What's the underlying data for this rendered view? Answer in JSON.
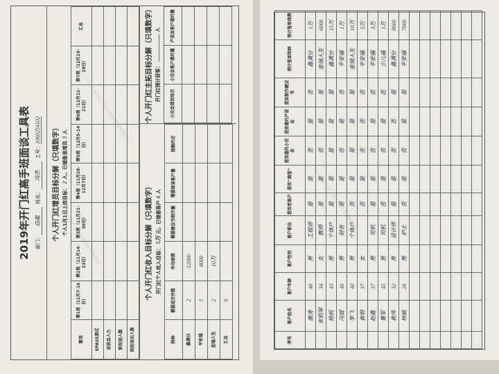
{
  "form_left": {
    "title": "2019年开门红高手班面谈工具表",
    "dept_label": "部门：",
    "dept_value": "白嵐",
    "name_label": "姓名：",
    "name_value": "冯杰",
    "id_label": "工号：",
    "id_value": "1060254102",
    "recruit": {
      "heading": "个人开门红增员目标分解（只填数字）",
      "goal_prefix": "个人1月1日上岗目标：",
      "goal_value": "2",
      "goal_mid": "人，已储备准增员",
      "reserve_value": "3",
      "goal_suffix": "人",
      "columns": [
        "事项",
        "第1周（11月7-16日）",
        "第2周（11月14-23日）",
        "第3周（11月21-30日）",
        "第4周（11月28-12月7日）",
        "第5周（12月5-14日）",
        "第6周（12月12-21日）",
        "第7周（12月19-28日）",
        "汇总"
      ],
      "rows": [
        "EPASS测试",
        "创说会人力",
        "职前班人数",
        "岗前培训人数"
      ]
    },
    "income": {
      "heading": "个人开门红收入目标分解（只填数字）",
      "goal_prefix": "开门红个人收入目标：",
      "goal_value": "5万",
      "goal_mid": "元，已储备客户",
      "reserve_value": "6",
      "goal_suffix": "人",
      "columns": [
        "险种",
        "需要成交件数",
        "件均保费",
        "需要建议书制作量",
        "需要面谈客户量",
        "接触约访"
      ],
      "rows": [
        {
          "label": "鑫满分",
          "count": "2",
          "premium": "12000"
        },
        {
          "label": "平安福",
          "count": "5",
          "premium": "8000"
        },
        {
          "label": "金瑞人生",
          "count": "2",
          "premium": "10万"
        },
        {
          "label": "汇总",
          "count": "9",
          "premium": ""
        }
      ]
    },
    "activity": {
      "heading": "个人开门红主拓目标分解（只填数字）",
      "goal_prefix": "开门红预计获客：",
      "goal_suffix": "人",
      "columns": [
        "小交会规划场次",
        "小交会客户邀约量",
        "产说会客户邀约量"
      ]
    }
  },
  "form_right": {
    "columns": [
      "序号",
      "客户姓名",
      "客户年龄",
      "客户性别",
      "客户职业",
      "是否老客户",
      "是否“面签”",
      "是否邀约小交会",
      "是否邀约产说会",
      "是否制作建议书",
      "预计签单险种",
      "预计签单保费"
    ],
    "rows": [
      [
        "",
        "康涛",
        "40",
        "男",
        "工程师",
        "是",
        "是",
        "否",
        "是",
        "否",
        "鑫满分",
        "1万"
      ],
      [
        "",
        "宋莉琴",
        "34",
        "女",
        "教师",
        "是",
        "是",
        "否",
        "是",
        "是",
        "金瑞人生",
        "6000"
      ],
      [
        "",
        "杨帆",
        "43",
        "男",
        "个体户",
        "是",
        "是",
        "是",
        "是",
        "是",
        "鑫满分",
        "15万"
      ],
      [
        "",
        "冯斌",
        "40",
        "男",
        "财务",
        "是",
        "是",
        "否",
        "是",
        "否",
        "平安福",
        "1万"
      ],
      [
        "",
        "李飞",
        "40",
        "男",
        "个体户",
        "否",
        "是",
        "是",
        "是",
        "是",
        "金瑞人生",
        "10万"
      ],
      [
        "",
        "袁明",
        "37",
        "女",
        "",
        "否",
        "是",
        "否",
        "否",
        "否",
        "平安福",
        "5万"
      ],
      [
        "",
        "赵鑫",
        "37",
        "男",
        "司机",
        "是",
        "是",
        "否",
        "是",
        "否",
        "平安福",
        "3万"
      ],
      [
        "",
        "曹军",
        "45",
        "男",
        "司机",
        "否",
        "是",
        "否",
        "是",
        "否",
        "少儿福",
        "1万"
      ],
      [
        "",
        "袁伟",
        "32",
        "男",
        "设计师",
        "是",
        "是",
        "否",
        "否",
        "是",
        "鑫满分",
        "8000"
      ],
      [
        "",
        "林娟",
        "26",
        "男",
        "护士",
        "否",
        "是",
        "否",
        "是",
        "是",
        "平安福",
        "7000"
      ]
    ],
    "empty_rows": 7
  }
}
